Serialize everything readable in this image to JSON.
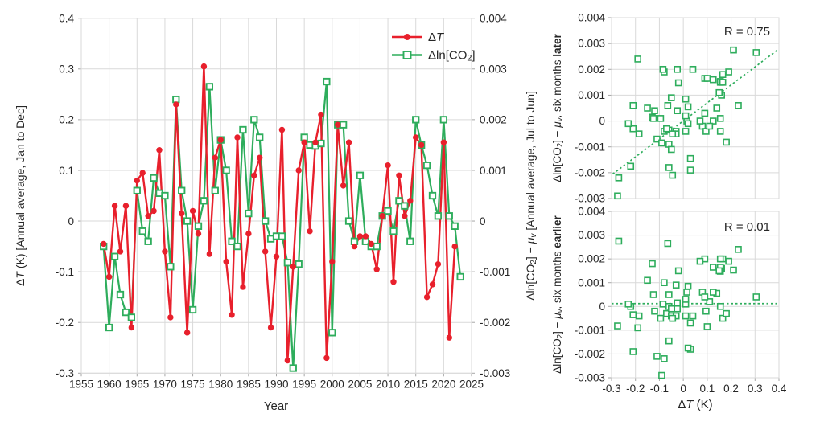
{
  "figure": {
    "background": "#ffffff",
    "grid_color": "#d9d9d9",
    "text_color": "#262626",
    "accent_red": "#e8202c",
    "accent_green": "#2ead5c"
  },
  "legend": {
    "items": [
      {
        "label_parts": [
          {
            "t": "Δ"
          },
          {
            "t": "T",
            "it": true
          }
        ],
        "series": 0
      },
      {
        "label_parts": [
          {
            "t": "Δln[CO"
          },
          {
            "t": "2",
            "sub": true
          },
          {
            "t": "]"
          }
        ],
        "series": 1
      }
    ]
  },
  "chart_data": [
    {
      "id": "main-timeseries",
      "type": "line",
      "x_axis": {
        "label": "Year",
        "min": 1955,
        "max": 2025,
        "tick_step": 5,
        "ticks": [
          "1955",
          "1960",
          "1965",
          "1970",
          "1975",
          "1980",
          "1985",
          "1990",
          "1995",
          "2000",
          "2005",
          "2010",
          "2015",
          "2020",
          "2025"
        ]
      },
      "left_axis": {
        "min": -0.3,
        "max": 0.4,
        "tick_step": 0.1,
        "title_parts": [
          {
            "t": "Δ"
          },
          {
            "t": "T",
            "it": true
          },
          {
            "t": " (K) [Annual average, Jan to Dec]"
          }
        ],
        "ticks": [
          "0.4",
          "0.3",
          "0.2",
          "0.1",
          "0",
          "-0.1",
          "-0.2",
          "-0.3"
        ]
      },
      "right_axis": {
        "min": -0.003,
        "max": 0.004,
        "tick_step": 0.001,
        "title_parts": [
          {
            "t": "Δln[CO"
          },
          {
            "t": "2",
            "sub": true
          },
          {
            "t": "] − "
          },
          {
            "t": "μ",
            "it": true
          },
          {
            "t": "v",
            "sub": true,
            "it": true
          },
          {
            "t": " [Annual average, Jul to Jun]"
          }
        ],
        "ticks": [
          "0.004",
          "0.003",
          "0.002",
          "0.001",
          "0",
          "-0.001",
          "-0.002",
          "-0.003"
        ]
      },
      "years": [
        1959,
        1960,
        1961,
        1962,
        1963,
        1964,
        1965,
        1966,
        1967,
        1968,
        1969,
        1970,
        1971,
        1972,
        1973,
        1974,
        1975,
        1976,
        1977,
        1978,
        1979,
        1980,
        1981,
        1982,
        1983,
        1984,
        1985,
        1986,
        1987,
        1988,
        1989,
        1990,
        1991,
        1992,
        1993,
        1994,
        1995,
        1996,
        1997,
        1998,
        1999,
        2000,
        2001,
        2002,
        2003,
        2004,
        2005,
        2006,
        2007,
        2008,
        2009,
        2010,
        2011,
        2012,
        2013,
        2014,
        2015,
        2016,
        2017,
        2018,
        2019,
        2020,
        2021,
        2022,
        2023
      ],
      "series": [
        {
          "name": "delta-T",
          "legend_label": "ΔT",
          "color": "#e8202c",
          "axis": "left",
          "marker": "circle",
          "values": [
            -0.045,
            -0.11,
            0.03,
            -0.06,
            0.03,
            -0.21,
            0.08,
            0.095,
            0.01,
            0.02,
            0.14,
            -0.06,
            -0.19,
            0.23,
            0.015,
            -0.22,
            0.02,
            -0.025,
            0.305,
            -0.065,
            0.125,
            0.16,
            -0.08,
            -0.185,
            0.165,
            -0.13,
            -0.025,
            0.09,
            0.125,
            -0.06,
            -0.21,
            -0.07,
            0.18,
            -0.275,
            -0.09,
            0.1,
            0.155,
            -0.02,
            0.155,
            0.21,
            -0.27,
            -0.08,
            0.19,
            0.07,
            0.155,
            -0.05,
            -0.03,
            -0.03,
            -0.045,
            -0.095,
            0.01,
            0.11,
            -0.12,
            0.09,
            0.01,
            0.04,
            0.165,
            0.15,
            -0.15,
            -0.125,
            -0.085,
            0.155,
            -0.23,
            -0.05,
            null
          ]
        },
        {
          "name": "delta-ln-CO2",
          "legend_label": "Δln[CO2]",
          "color": "#2ead5c",
          "axis": "right",
          "marker": "square-open",
          "values": [
            -0.0005,
            -0.0021,
            -0.0007,
            -0.00145,
            -0.0018,
            -0.0019,
            0.0006,
            -0.0002,
            -0.0004,
            0.00085,
            0.00055,
            0.0005,
            -0.0009,
            0.0024,
            0.0006,
            0.0,
            -0.00175,
            -0.0001,
            0.0004,
            0.00265,
            0.0006,
            0.0016,
            0.001,
            -0.0004,
            -0.0005,
            0.0018,
            0.00015,
            0.002,
            0.00165,
            0.0,
            -0.00035,
            -0.0003,
            -0.0003,
            -0.00082,
            -0.0029,
            -0.00085,
            0.00165,
            0.0015,
            0.00148,
            0.00153,
            0.00275,
            -0.0022,
            0.0019,
            0.0019,
            0.0,
            -0.0004,
            0.0009,
            -0.0004,
            -0.0005,
            -0.0005,
            0.0001,
            0.0002,
            -0.0002,
            0.0004,
            0.0003,
            -0.0004,
            0.002,
            0.0015,
            0.0011,
            0.0005,
            0.0001,
            0.002,
            0.0001,
            -0.0001,
            -0.0011
          ]
        }
      ]
    },
    {
      "id": "scatter-six-months-later",
      "type": "scatter",
      "r_label": "R = 0.75",
      "marker_color": "#2ead5c",
      "y_axis": {
        "min": -0.003,
        "max": 0.004,
        "tick_step": 0.001,
        "title_parts": [
          {
            "t": "Δln[CO"
          },
          {
            "t": "2",
            "sub": true
          },
          {
            "t": "] − "
          },
          {
            "t": "μ",
            "it": true
          },
          {
            "t": "v",
            "sub": true,
            "it": true
          },
          {
            "t": ", six months "
          },
          {
            "t": "later",
            "b": true
          }
        ],
        "ticks": [
          "0.004",
          "0.003",
          "0.002",
          "0.001",
          "0",
          "-0.001",
          "-0.002",
          "-0.003"
        ]
      },
      "x_axis": {
        "min": -0.3,
        "max": 0.4
      },
      "points_note": "x = ΔT of year y, y = Δln[CO2]−μv of year y+1 (CO2 window six months later), derived from main-timeseries",
      "x_from_series": 0,
      "y_from_series": 1,
      "y_shift_years": 1,
      "trend": {
        "style": "dotted",
        "x1": -0.295,
        "y1": -0.00205,
        "x2": 0.397,
        "y2": 0.00277
      }
    },
    {
      "id": "scatter-six-months-earlier",
      "type": "scatter",
      "r_label": "R = 0.01",
      "marker_color": "#2ead5c",
      "y_axis": {
        "min": -0.003,
        "max": 0.004,
        "tick_step": 0.001,
        "title_parts": [
          {
            "t": "Δln[CO"
          },
          {
            "t": "2",
            "sub": true
          },
          {
            "t": "] − "
          },
          {
            "t": "μ",
            "it": true
          },
          {
            "t": "v",
            "sub": true,
            "it": true
          },
          {
            "t": ", six months "
          },
          {
            "t": "earlier",
            "b": true
          }
        ],
        "ticks": [
          "0.004",
          "0.003",
          "0.002",
          "0.001",
          "0",
          "-0.001",
          "-0.002",
          "-0.003"
        ]
      },
      "x_axis": {
        "min": -0.3,
        "max": 0.4,
        "title_parts": [
          {
            "t": "Δ"
          },
          {
            "t": "T",
            "it": true
          },
          {
            "t": " (K)"
          }
        ],
        "ticks": [
          "-0.3",
          "-0.2",
          "-0.1",
          "0",
          "0.1",
          "0.2",
          "0.3",
          "0.4"
        ]
      },
      "points_note": "x = ΔT of year y, y = Δln[CO2]−μv of same year y (CO2 window six months earlier), derived from main-timeseries",
      "x_from_series": 0,
      "y_from_series": 1,
      "y_shift_years": 0,
      "trend": {
        "style": "dotted",
        "x1": -0.3,
        "y1": 0.00012,
        "x2": 0.4,
        "y2": 0.00012
      }
    }
  ]
}
